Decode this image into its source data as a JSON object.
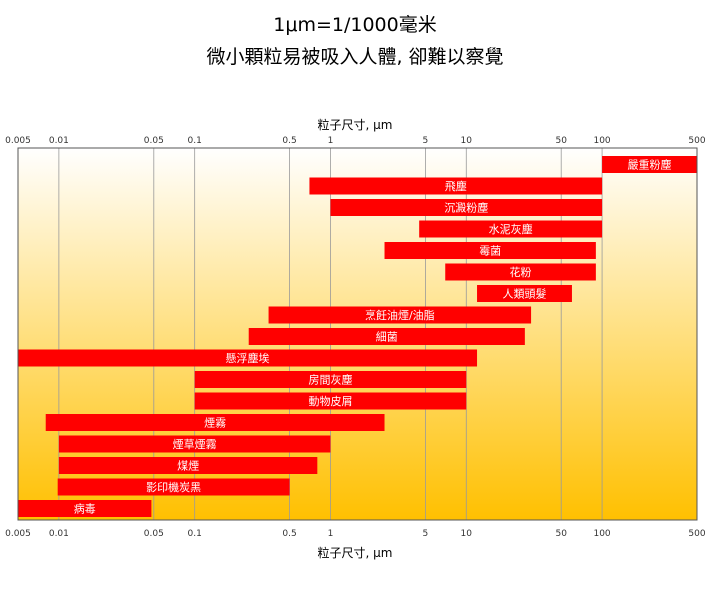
{
  "chart_data": {
    "type": "bar",
    "orientation": "horizontal",
    "title": "1μm=1/1000毫米",
    "subtitle": "微小顆粒易被吸入人體, 卻難以察覺",
    "xlabel": "粒子尺寸, μm",
    "xscale": "log",
    "xlim": [
      0.005,
      500
    ],
    "xticks": [
      "0.005",
      "0.01",
      "0.05",
      "0.1",
      "0.5",
      "1",
      "5",
      "10",
      "50",
      "100",
      "500"
    ],
    "grid": true,
    "colors": {
      "bar": "#ff0000",
      "bar_label": "#ffffff",
      "background_top": "#ffffff",
      "background_bottom": "#ffc000"
    },
    "bars": [
      {
        "label": "嚴重粉塵",
        "start": 100,
        "end": 500
      },
      {
        "label": "飛塵",
        "start": 0.7,
        "end": 100
      },
      {
        "label": "沉澱粉塵",
        "start": 1,
        "end": 100
      },
      {
        "label": "水泥灰塵",
        "start": 4.5,
        "end": 100
      },
      {
        "label": "霉菌",
        "start": 2.5,
        "end": 90
      },
      {
        "label": "花粉",
        "start": 7,
        "end": 90
      },
      {
        "label": "人類頭髮",
        "start": 12,
        "end": 60
      },
      {
        "label": "烹飪油煙/油脂",
        "start": 0.35,
        "end": 30
      },
      {
        "label": "細菌",
        "start": 0.25,
        "end": 27
      },
      {
        "label": "懸浮塵埃",
        "start": 0.005,
        "end": 12
      },
      {
        "label": "房間灰塵",
        "start": 0.1,
        "end": 10
      },
      {
        "label": "動物皮屑",
        "start": 0.1,
        "end": 10
      },
      {
        "label": "煙霧",
        "start": 0.008,
        "end": 2.5
      },
      {
        "label": "煙草煙霧",
        "start": 0.01,
        "end": 1
      },
      {
        "label": "煤煙",
        "start": 0.01,
        "end": 0.8
      },
      {
        "label": "影印機炭黑",
        "start": 0.0098,
        "end": 0.5
      },
      {
        "label": "病毒",
        "start": 0.005,
        "end": 0.048
      }
    ]
  }
}
